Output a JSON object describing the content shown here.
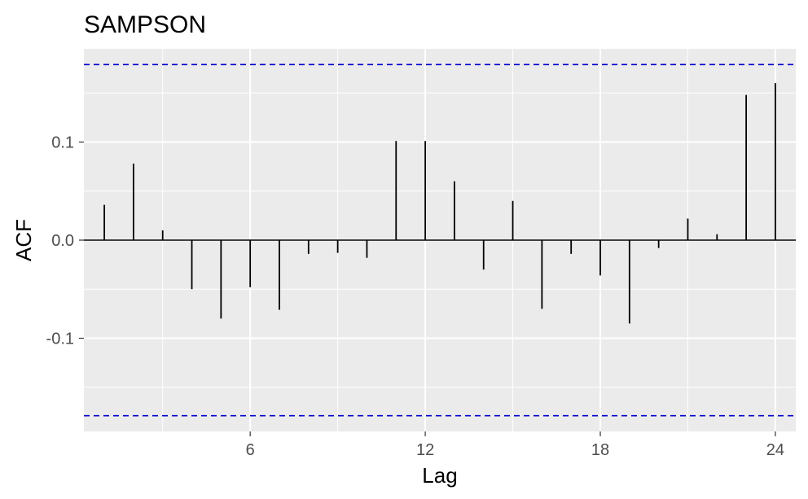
{
  "chart_data": {
    "type": "bar",
    "title": "SAMPSON",
    "xlabel": "Lag",
    "ylabel": "ACF",
    "xlim": [
      0.3,
      24.7
    ],
    "ylim": [
      -0.195,
      0.195
    ],
    "x_ticks": [
      6,
      12,
      18,
      24
    ],
    "x_tick_labels": [
      "6",
      "12",
      "18",
      "24"
    ],
    "y_ticks": [
      -0.1,
      0.0,
      0.1
    ],
    "y_tick_labels": [
      "-0.1",
      "0.0",
      "0.1"
    ],
    "confidence_bound": 0.179,
    "confidence_line_color": "#0000CC",
    "bar_color": "#000000",
    "panel_background": "#EBEBEB",
    "grid": true,
    "lags": [
      1,
      2,
      3,
      4,
      5,
      6,
      7,
      8,
      9,
      10,
      11,
      12,
      13,
      14,
      15,
      16,
      17,
      18,
      19,
      20,
      21,
      22,
      23,
      24
    ],
    "values": [
      0.036,
      0.078,
      0.01,
      -0.05,
      -0.08,
      -0.048,
      -0.071,
      -0.014,
      -0.013,
      -0.018,
      0.101,
      0.101,
      0.06,
      -0.03,
      0.04,
      -0.07,
      -0.014,
      -0.036,
      -0.085,
      -0.008,
      0.022,
      0.006,
      0.148,
      0.16
    ]
  }
}
